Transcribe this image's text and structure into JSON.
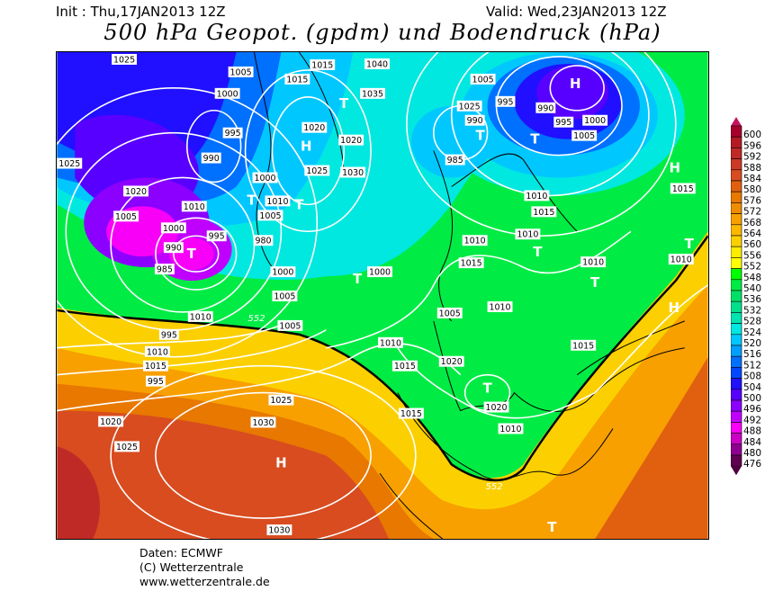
{
  "header": {
    "init": "Init : Thu,17JAN2013 12Z",
    "valid": "Valid: Wed,23JAN2013 12Z",
    "title": "500 hPa Geopot. (gpdm) und Bodendruck (hPa)"
  },
  "legend": {
    "labels": [
      "600",
      "596",
      "592",
      "588",
      "584",
      "580",
      "576",
      "572",
      "568",
      "564",
      "560",
      "556",
      "552",
      "548",
      "540",
      "536",
      "532",
      "528",
      "524",
      "520",
      "516",
      "512",
      "508",
      "504",
      "500",
      "496",
      "492",
      "488",
      "484",
      "480",
      "476"
    ],
    "colors": [
      "#a8002c",
      "#b41a24",
      "#c02a26",
      "#cc3a26",
      "#d84c20",
      "#e06010",
      "#e87800",
      "#f08c00",
      "#f8a000",
      "#fcb800",
      "#fcd000",
      "#fcec00",
      "#ffff00",
      "#00ff00",
      "#00ec44",
      "#00e068",
      "#00e08c",
      "#00e4b0",
      "#00e8e0",
      "#00c8ff",
      "#00a0ff",
      "#0070ff",
      "#0048ff",
      "#2010ff",
      "#5800ff",
      "#8c00ff",
      "#c000ff",
      "#f800f8",
      "#cc00c4",
      "#900090",
      "#600050"
    ],
    "top_color": "#c81060",
    "bottom_color": "#500040"
  },
  "map": {
    "contour_label": "552",
    "isobar_labels": [
      "1025",
      "1005",
      "1000",
      "995",
      "990",
      "1015",
      "1015",
      "1040",
      "1035",
      "1020",
      "1025",
      "1020",
      "1030",
      "1000",
      "1010",
      "1005",
      "1025",
      "1020",
      "1005",
      "1010",
      "1000",
      "995",
      "990",
      "985",
      "980",
      "1000",
      "1005",
      "1010",
      "995",
      "1010",
      "1015",
      "995",
      "1000",
      "1005",
      "1010",
      "1015",
      "1020",
      "1020",
      "1025",
      "1025",
      "1030",
      "1030",
      "1015",
      "1015",
      "1010",
      "1005",
      "995",
      "990",
      "985",
      "990",
      "995",
      "1000",
      "1005",
      "1010",
      "1015",
      "1010",
      "1010",
      "1010",
      "1015",
      "1015",
      "1020",
      "1010",
      "1005",
      "1010",
      "1025"
    ],
    "centers": [
      "H",
      "T",
      "T",
      "T",
      "T",
      "T",
      "T",
      "T",
      "H",
      "H",
      "T",
      "T",
      "H",
      "T",
      "T",
      "H",
      "T"
    ]
  },
  "footer": {
    "source": "Daten: ECMWF",
    "copyright": "(C) Wetterzentrale",
    "url": "www.wetterzentrale.de"
  }
}
